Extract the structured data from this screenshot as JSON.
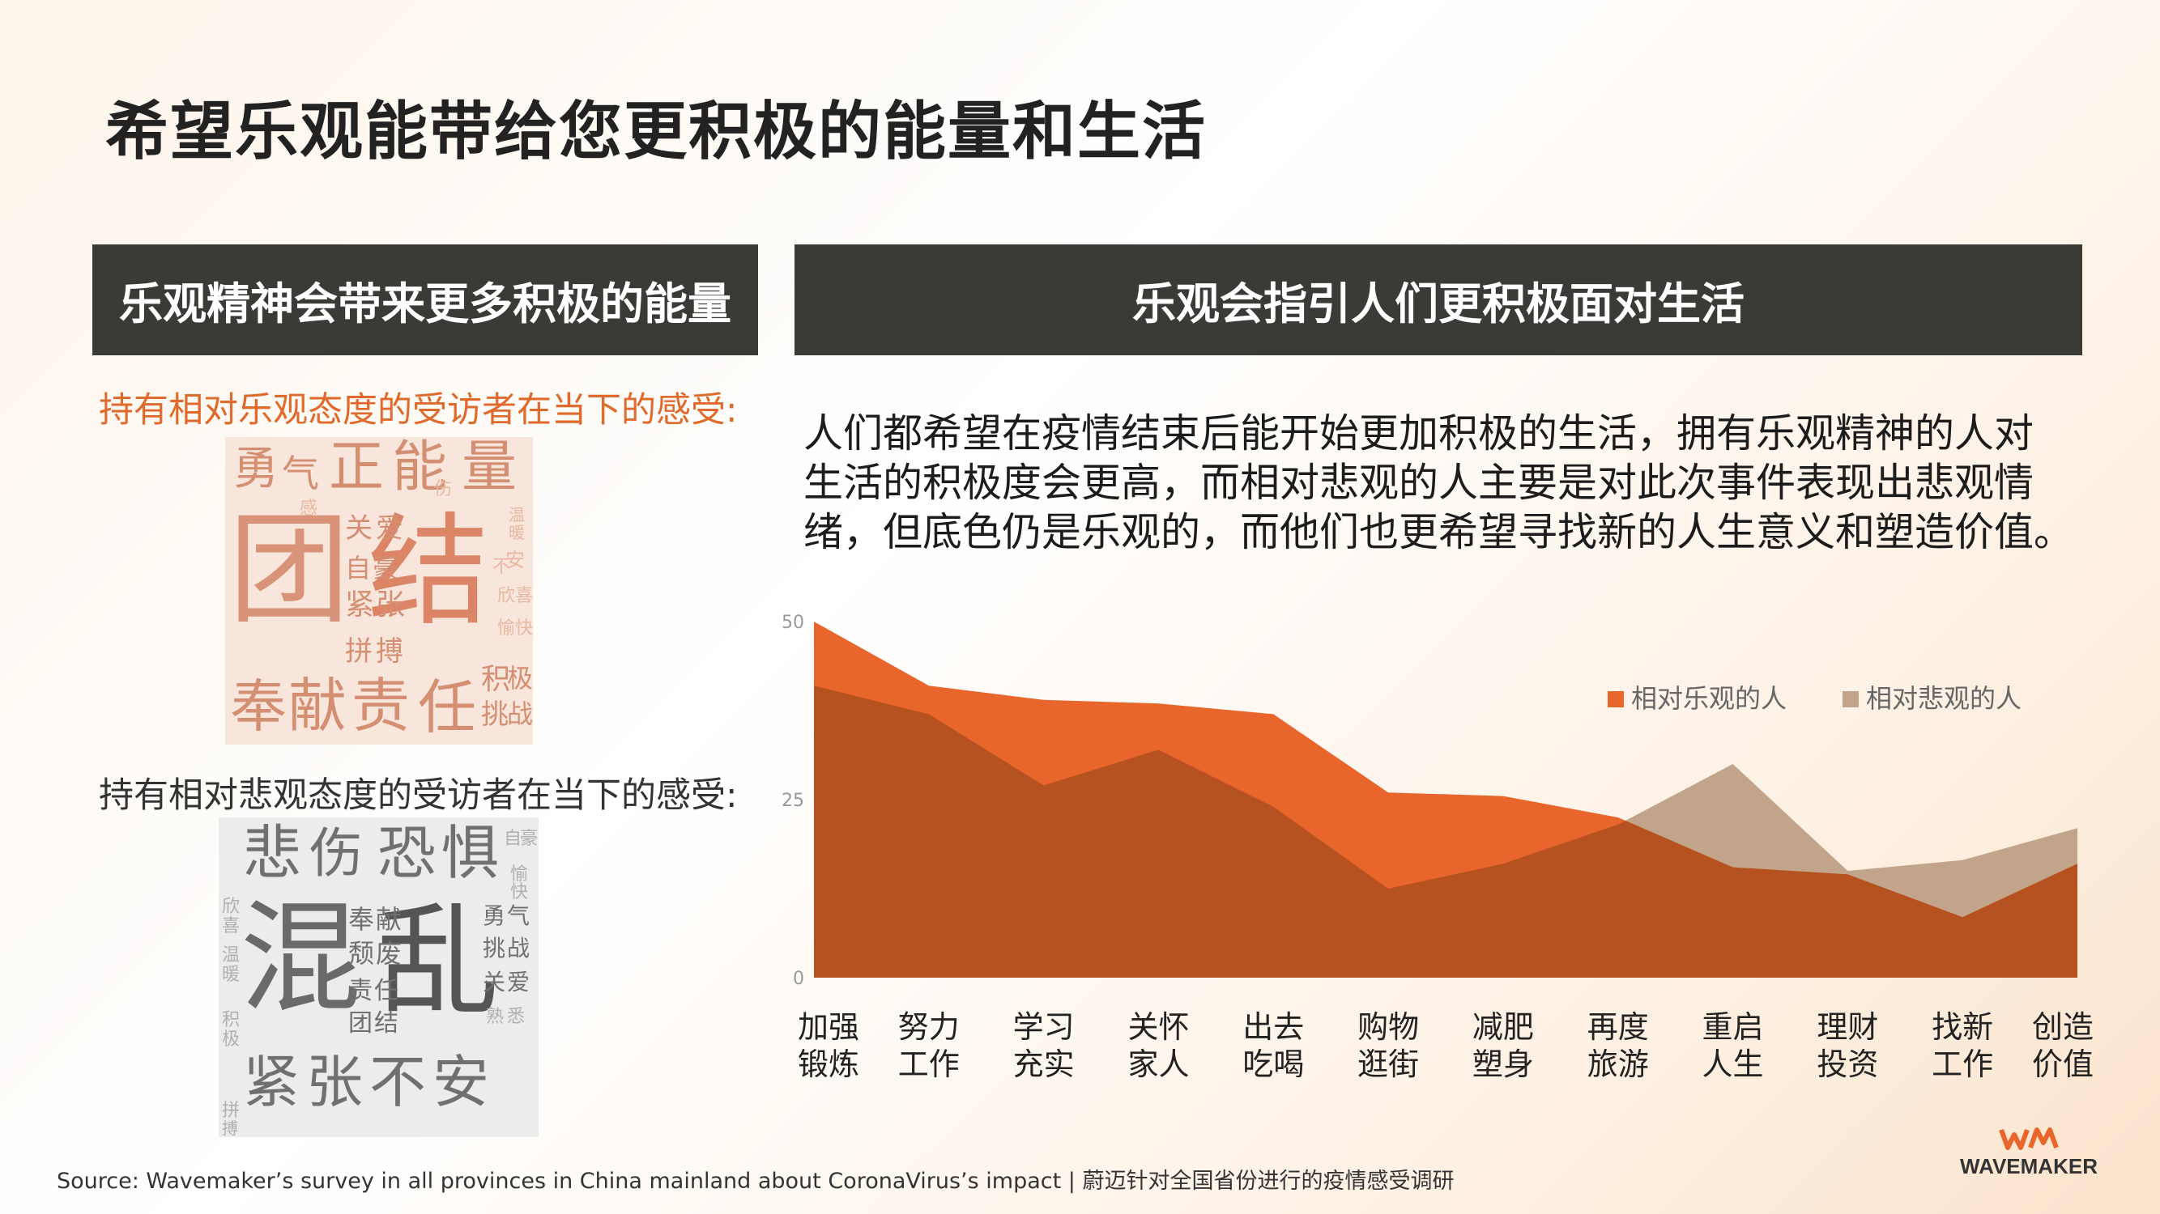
{
  "title": "希望乐观能带给您更积极的能量和生活",
  "left_panel": {
    "header": "乐观精神会带来更多积极的能量",
    "optimist_caption": "持有相对乐观态度的受访者在当下的感受:",
    "pessimist_caption": "持有相对悲观态度的受访者在当下的感受:",
    "optimist_words": {
      "w1": "勇",
      "w2": "气",
      "w3": "正",
      "w4": "能",
      "w5": "量",
      "w6": "团",
      "w7": "结",
      "w8": "奉",
      "w9": "献",
      "w10": "责",
      "w11": "任",
      "w12": "关",
      "w13": "爱",
      "w14": "自",
      "w15": "豪",
      "w16": "紧",
      "w17": "张",
      "w18": "拼",
      "w19": "搏",
      "w20": "积",
      "w21": "极",
      "w22": "挑",
      "w23": "战",
      "w24": "安",
      "w25": "温",
      "w26": "暖",
      "w27": "欣",
      "w28": "喜",
      "w29": "愉",
      "w30": "快",
      "w31": "伤",
      "w32": "感",
      "w33": "不"
    },
    "pessimist_words": {
      "w1": "悲",
      "w2": "伤",
      "w3": "恐",
      "w4": "惧",
      "w5": "混",
      "w6": "乱",
      "w7": "紧",
      "w8": "张",
      "w9": "不",
      "w10": "安",
      "w11": "奉",
      "w12": "献",
      "w13": "颓",
      "w14": "废",
      "w15": "责",
      "w16": "任",
      "w17": "团",
      "w18": "结",
      "w19": "勇",
      "w20": "气",
      "w21": "挑",
      "w22": "战",
      "w23": "关",
      "w24": "爱",
      "w25": "自",
      "w26": "豪",
      "w27": "欣",
      "w28": "喜",
      "w29": "温",
      "w30": "暖",
      "w31": "拼",
      "w32": "搏",
      "w33": "积",
      "w34": "极",
      "w35": "愉",
      "w36": "快",
      "w37": "熟",
      "w38": "悉"
    }
  },
  "right_panel": {
    "header": "乐观会指引人们更积极面对生活",
    "description_lines": [
      "人们都希望在疫情结束后能开始更加积极的生活，拥有乐观精神的人对",
      "生活的积极度会更高，而相对悲观的人主要是对此次事件表现出悲观情",
      "绪，但底色仍是乐观的，而他们也更希望寻找新的人生意义和塑造价值。"
    ]
  },
  "chart_data": {
    "type": "area",
    "categories": [
      [
        "加强",
        "锻炼"
      ],
      [
        "努力",
        "工作"
      ],
      [
        "学习",
        "充实"
      ],
      [
        "关怀",
        "家人"
      ],
      [
        "出去",
        "吃喝"
      ],
      [
        "购物",
        "逛街"
      ],
      [
        "减肥",
        "塑身"
      ],
      [
        "再度",
        "旅游"
      ],
      [
        "重启",
        "人生"
      ],
      [
        "理财",
        "投资"
      ],
      [
        "找新",
        "工作"
      ],
      [
        "创造",
        "价值"
      ]
    ],
    "series": [
      {
        "name": "相对乐观的人",
        "color": "#e8662c",
        "values": [
          50,
          41,
          39,
          38.5,
          37,
          26,
          25.5,
          22.5,
          15.5,
          14.5,
          8.5,
          16
        ]
      },
      {
        "name": "相对悲观的人",
        "color": "#c2a48a",
        "values": [
          41,
          37,
          27,
          32,
          24,
          12.5,
          16,
          21.5,
          30,
          15,
          16.5,
          21
        ]
      }
    ],
    "overlap_color": "#b5521f",
    "yticks": [
      0,
      25,
      50
    ],
    "ylim": [
      0,
      50
    ],
    "legend_position": "top-right",
    "grid": false
  },
  "source": "Source: Wavemaker’s survey in all provinces in China mainland about CoronaVirus’s impact | 蔚迈针对全国省份进行的疫情感受调研",
  "brand": {
    "logo_text": "WAVEMAKER",
    "accent": "#e8662c"
  }
}
